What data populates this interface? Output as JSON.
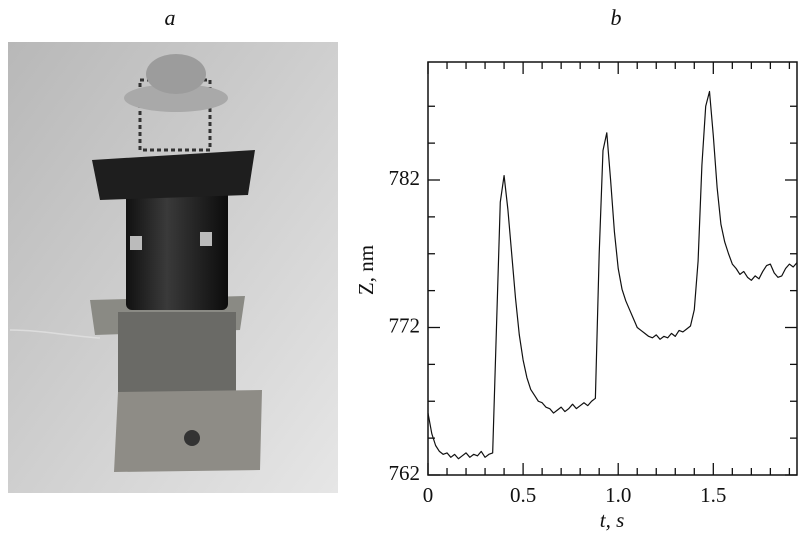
{
  "panel_labels": [
    "a",
    "b"
  ],
  "chart_data": {
    "type": "line",
    "xlabel": "t, s",
    "ylabel": "Z, nm",
    "color": "#111111",
    "xlim": [
      0,
      1.94
    ],
    "ylim": [
      762,
      790
    ],
    "xticks": [
      0,
      0.5,
      {
        "value": 1,
        "label": "1.0"
      },
      1.5
    ],
    "yticks": [
      762,
      772,
      782
    ],
    "xminorticks": [
      0.1,
      0.2,
      0.3,
      0.4,
      0.6,
      0.7,
      0.8,
      0.9,
      1.1,
      1.2,
      1.3,
      1.4,
      1.6,
      1.7,
      1.8,
      1.9
    ],
    "yminorticks": [
      764.5,
      767,
      769.5,
      774.5,
      777,
      779.5,
      784.5,
      787
    ],
    "x": [
      0,
      0.02,
      0.04,
      0.06,
      0.08,
      0.1,
      0.12,
      0.14,
      0.16,
      0.18,
      0.2,
      0.22,
      0.24,
      0.26,
      0.28,
      0.3,
      0.32,
      0.34,
      0.36,
      0.38,
      0.4,
      0.42,
      0.44,
      0.46,
      0.48,
      0.5,
      0.52,
      0.54,
      0.56,
      0.58,
      0.6,
      0.62,
      0.64,
      0.66,
      0.68,
      0.7,
      0.72,
      0.74,
      0.76,
      0.78,
      0.8,
      0.82,
      0.84,
      0.86,
      0.88,
      0.9,
      0.92,
      0.94,
      0.96,
      0.98,
      1,
      1.02,
      1.04,
      1.06,
      1.08,
      1.1,
      1.12,
      1.14,
      1.16,
      1.18,
      1.2,
      1.22,
      1.24,
      1.26,
      1.28,
      1.3,
      1.32,
      1.34,
      1.36,
      1.38,
      1.4,
      1.42,
      1.44,
      1.46,
      1.48,
      1.5,
      1.52,
      1.54,
      1.56,
      1.58,
      1.6,
      1.62,
      1.64,
      1.66,
      1.68,
      1.7,
      1.72,
      1.74,
      1.76,
      1.78,
      1.8,
      1.82,
      1.84,
      1.86,
      1.88,
      1.9,
      1.92,
      1.94
    ],
    "values": [
      766.2,
      764.8,
      764.0,
      763.6,
      763.4,
      763.5,
      763.2,
      763.4,
      763.1,
      763.3,
      763.5,
      763.2,
      763.4,
      763.3,
      763.6,
      763.2,
      763.4,
      763.5,
      772.0,
      780.5,
      782.3,
      780.0,
      777.0,
      774.0,
      771.5,
      769.8,
      768.6,
      767.8,
      767.4,
      767.0,
      766.9,
      766.6,
      766.5,
      766.2,
      766.4,
      766.6,
      766.3,
      766.5,
      766.8,
      766.5,
      766.7,
      766.9,
      766.7,
      767.0,
      767.2,
      777.0,
      784.0,
      785.2,
      782.0,
      778.5,
      776.0,
      774.6,
      773.8,
      773.2,
      772.6,
      772.0,
      771.8,
      771.6,
      771.4,
      771.3,
      771.5,
      771.2,
      771.4,
      771.3,
      771.6,
      771.4,
      771.8,
      771.7,
      771.9,
      772.1,
      773.2,
      776.5,
      783.0,
      787.0,
      788.0,
      785.0,
      781.5,
      779.0,
      777.8,
      777.0,
      776.3,
      776.0,
      775.6,
      775.8,
      775.4,
      775.2,
      775.5,
      775.3,
      775.8,
      776.2,
      776.3,
      775.7,
      775.4,
      775.5,
      776.0,
      776.3,
      776.1,
      776.4
    ]
  }
}
